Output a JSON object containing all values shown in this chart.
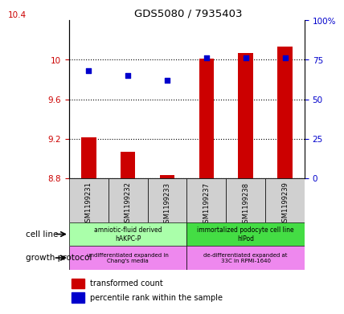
{
  "title": "GDS5080 / 7935403",
  "samples": [
    "GSM1199231",
    "GSM1199232",
    "GSM1199233",
    "GSM1199237",
    "GSM1199238",
    "GSM1199239"
  ],
  "transformed_counts": [
    9.21,
    9.07,
    8.83,
    10.01,
    10.07,
    10.13
  ],
  "percentile_ranks": [
    68,
    65,
    62,
    76,
    76,
    76
  ],
  "ylim_left": [
    8.8,
    10.4
  ],
  "ylim_right": [
    0,
    100
  ],
  "yticks_left": [
    8.8,
    9.2,
    9.6,
    10.0
  ],
  "ytick_labels_left": [
    "8.8",
    "9.2",
    "9.6",
    "10"
  ],
  "ytick_top_left": "10.4",
  "yticks_right": [
    0,
    25,
    50,
    75,
    100
  ],
  "ytick_labels_right": [
    "0",
    "25",
    "50",
    "75",
    "100%"
  ],
  "bar_color": "#cc0000",
  "dot_color": "#0000cc",
  "bar_baseline": 8.8,
  "cell_line_groups": [
    {
      "label": "amniotic-fluid derived\nhAKPC-P",
      "start": 0,
      "end": 3,
      "color": "#aaffaa"
    },
    {
      "label": "immortalized podocyte cell line\nhIPod",
      "start": 3,
      "end": 6,
      "color": "#44dd44"
    }
  ],
  "growth_protocol_groups": [
    {
      "label": "undifferentiated expanded in\nChang's media",
      "start": 0,
      "end": 3,
      "color": "#ee88ee"
    },
    {
      "label": "de-differentiated expanded at\n33C in RPMI-1640",
      "start": 3,
      "end": 6,
      "color": "#ee88ee"
    }
  ],
  "cell_line_label": "cell line",
  "growth_protocol_label": "growth protocol",
  "legend_red": "transformed count",
  "legend_blue": "percentile rank within the sample",
  "tick_color_left": "#cc0000",
  "tick_color_right": "#0000cc"
}
